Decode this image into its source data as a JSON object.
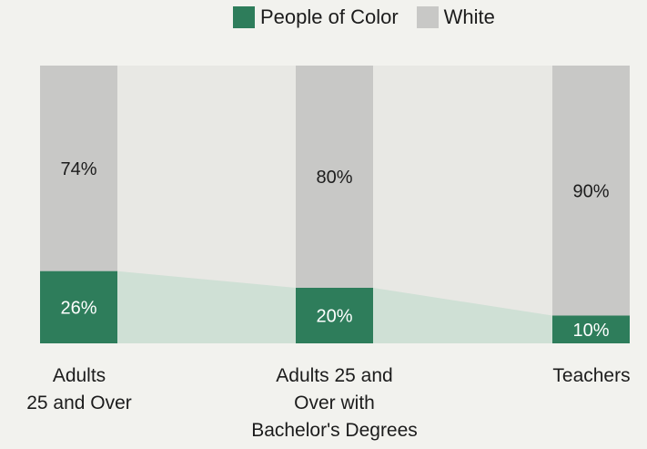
{
  "chart_data": {
    "type": "bar",
    "stacked": true,
    "categories": [
      "Adults\n25 and Over",
      "Adults 25 and\nOver with\nBachelor's Degrees",
      "Teachers"
    ],
    "series": [
      {
        "name": "People of Color",
        "values": [
          26,
          20,
          10
        ],
        "labels": [
          "26%",
          "20%",
          "10%"
        ],
        "color": "#2e7d5b"
      },
      {
        "name": "White",
        "values": [
          74,
          80,
          90
        ],
        "labels": [
          "74%",
          "80%",
          "90%"
        ],
        "color": "#c8c8c6"
      }
    ],
    "ylim": [
      0,
      100
    ],
    "legend_position": "top",
    "grid": false,
    "colors": {
      "background": "#f2f2ee",
      "plot_background": "#e8e8e4",
      "connector_fill": "#cfe0d5",
      "people_of_color": "#2e7d5b",
      "white": "#c8c8c6"
    }
  }
}
